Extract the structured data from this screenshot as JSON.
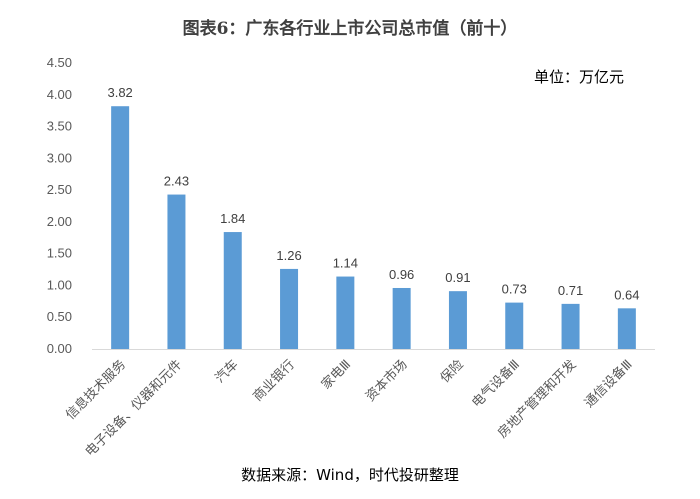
{
  "chart_data": {
    "type": "bar",
    "title": "图表6：广东各行业上市公司总市值（前十）",
    "unit": "单位：万亿元",
    "source": "数据来源：Wind，时代投研整理",
    "xlabel": "",
    "ylabel": "",
    "ylim": [
      0,
      4.5
    ],
    "yticks": [
      "0.00",
      "0.50",
      "1.00",
      "1.50",
      "2.00",
      "2.50",
      "3.00",
      "3.50",
      "4.00",
      "4.50"
    ],
    "grid": false,
    "legend": "none",
    "bar_color": "#5B9BD5",
    "categories": [
      "信息技术服务",
      "电子设备、仪器和元件",
      "汽车",
      "商业银行",
      "家电Ⅲ",
      "资本市场",
      "保险",
      "电气设备Ⅲ",
      "房地产管理和开发",
      "通信设备Ⅲ"
    ],
    "values": [
      3.82,
      2.43,
      1.84,
      1.26,
      1.14,
      0.96,
      0.91,
      0.73,
      0.71,
      0.64
    ],
    "value_labels": [
      "3.82",
      "2.43",
      "1.84",
      "1.26",
      "1.14",
      "0.96",
      "0.91",
      "0.73",
      "0.71",
      "0.64"
    ]
  }
}
